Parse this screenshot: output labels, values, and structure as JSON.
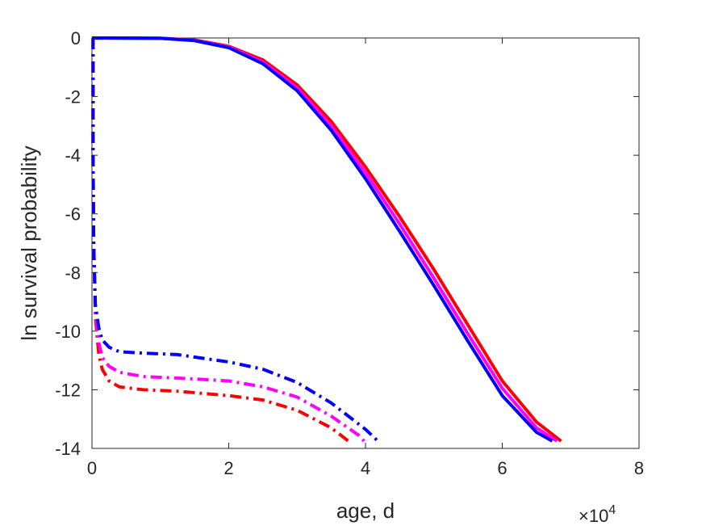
{
  "chart_data": {
    "type": "line",
    "title": "",
    "xlabel": "age, d",
    "ylabel": "ln survival probability",
    "x_multiplier_label": "×10",
    "x_multiplier_exponent": "4",
    "xlim": [
      0,
      80000
    ],
    "ylim": [
      -14,
      0
    ],
    "xticks": [
      0,
      20000,
      40000,
      60000,
      80000
    ],
    "xtick_labels": [
      "0",
      "2",
      "4",
      "6",
      "8"
    ],
    "yticks": [
      0,
      -2,
      -4,
      -6,
      -8,
      -10,
      -12,
      -14
    ],
    "ytick_labels": [
      "0",
      "-2",
      "-4",
      "-6",
      "-8",
      "-10",
      "-12",
      "-14"
    ],
    "grid": false,
    "legend": "none",
    "series": [
      {
        "style": "solid",
        "color": "#ff0000",
        "points": [
          [
            0,
            0
          ],
          [
            10000,
            -0.01
          ],
          [
            15000,
            -0.07
          ],
          [
            20000,
            -0.28
          ],
          [
            25000,
            -0.75
          ],
          [
            30000,
            -1.6
          ],
          [
            35000,
            -2.85
          ],
          [
            40000,
            -4.4
          ],
          [
            45000,
            -6.1
          ],
          [
            50000,
            -7.9
          ],
          [
            55000,
            -9.8
          ],
          [
            60000,
            -11.7
          ],
          [
            65000,
            -13.1
          ],
          [
            68600,
            -13.75
          ]
        ]
      },
      {
        "style": "solid",
        "color": "#ff00ff",
        "points": [
          [
            0,
            0
          ],
          [
            10000,
            -0.01
          ],
          [
            15000,
            -0.08
          ],
          [
            20000,
            -0.3
          ],
          [
            25000,
            -0.82
          ],
          [
            30000,
            -1.7
          ],
          [
            35000,
            -3.0
          ],
          [
            40000,
            -4.6
          ],
          [
            45000,
            -6.35
          ],
          [
            50000,
            -8.2
          ],
          [
            55000,
            -10.1
          ],
          [
            60000,
            -11.95
          ],
          [
            65000,
            -13.3
          ],
          [
            68000,
            -13.75
          ]
        ]
      },
      {
        "style": "solid",
        "color": "#0000ff",
        "points": [
          [
            0,
            0
          ],
          [
            10000,
            -0.01
          ],
          [
            15000,
            -0.09
          ],
          [
            20000,
            -0.33
          ],
          [
            25000,
            -0.88
          ],
          [
            30000,
            -1.8
          ],
          [
            35000,
            -3.15
          ],
          [
            40000,
            -4.8
          ],
          [
            45000,
            -6.6
          ],
          [
            50000,
            -8.45
          ],
          [
            55000,
            -10.35
          ],
          [
            60000,
            -12.2
          ],
          [
            65000,
            -13.45
          ],
          [
            67300,
            -13.75
          ]
        ]
      },
      {
        "style": "dashdot",
        "color": "#ff0000",
        "points": [
          [
            150,
            0
          ],
          [
            150,
            -4
          ],
          [
            250,
            -7
          ],
          [
            500,
            -9.5
          ],
          [
            1000,
            -10.8
          ],
          [
            1500,
            -11.3
          ],
          [
            2500,
            -11.7
          ],
          [
            4000,
            -11.9
          ],
          [
            7500,
            -12.0
          ],
          [
            12500,
            -12.05
          ],
          [
            20000,
            -12.2
          ],
          [
            25000,
            -12.35
          ],
          [
            30000,
            -12.7
          ],
          [
            35000,
            -13.3
          ],
          [
            37500,
            -13.75
          ]
        ]
      },
      {
        "style": "dashdot",
        "color": "#ff00ff",
        "points": [
          [
            150,
            0
          ],
          [
            150,
            -4
          ],
          [
            250,
            -7
          ],
          [
            500,
            -9.3
          ],
          [
            1000,
            -10.4
          ],
          [
            1500,
            -10.9
          ],
          [
            2500,
            -11.2
          ],
          [
            4000,
            -11.4
          ],
          [
            7500,
            -11.55
          ],
          [
            12500,
            -11.6
          ],
          [
            20000,
            -11.7
          ],
          [
            25000,
            -11.9
          ],
          [
            30000,
            -12.25
          ],
          [
            35000,
            -12.9
          ],
          [
            39000,
            -13.55
          ],
          [
            39800,
            -13.75
          ]
        ]
      },
      {
        "style": "dashdot",
        "color": "#0000ff",
        "points": [
          [
            150,
            0
          ],
          [
            150,
            -4
          ],
          [
            250,
            -7
          ],
          [
            500,
            -9.1
          ],
          [
            1000,
            -9.9
          ],
          [
            1500,
            -10.3
          ],
          [
            2500,
            -10.55
          ],
          [
            4000,
            -10.7
          ],
          [
            7500,
            -10.75
          ],
          [
            12500,
            -10.8
          ],
          [
            20000,
            -11.05
          ],
          [
            25000,
            -11.3
          ],
          [
            30000,
            -11.75
          ],
          [
            35000,
            -12.45
          ],
          [
            40000,
            -13.35
          ],
          [
            41800,
            -13.75
          ]
        ]
      }
    ]
  }
}
